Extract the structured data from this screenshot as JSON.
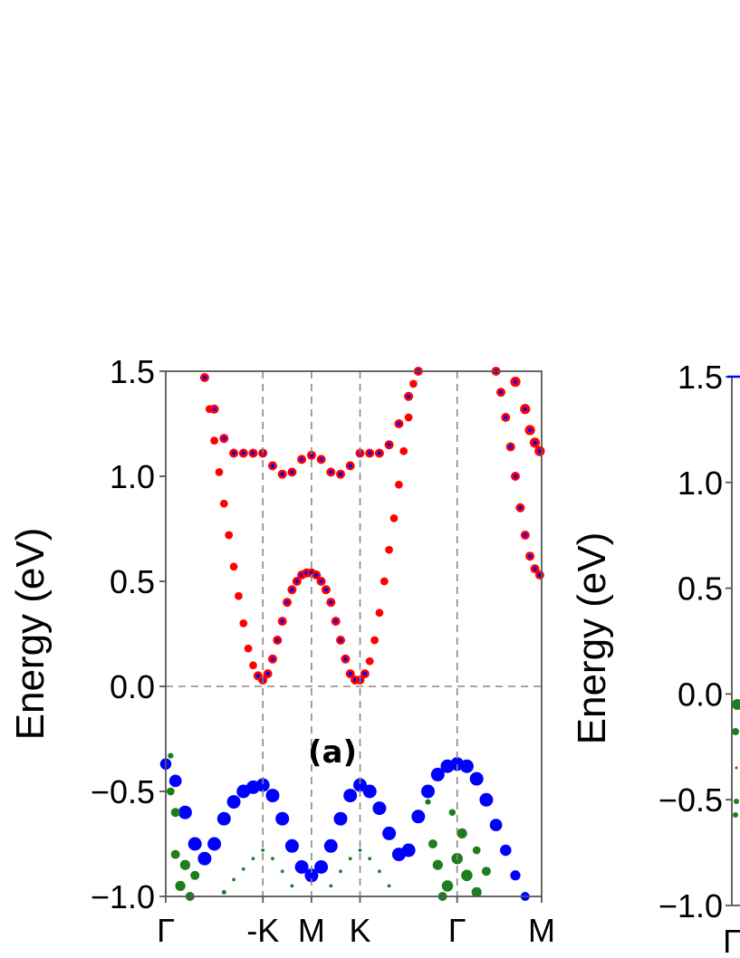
{
  "chart_data": [
    {
      "type": "scatter",
      "panel_label": "(a)",
      "ylabel": "Energy (eV)",
      "ylim": [
        -1.0,
        1.5
      ],
      "yticks": [
        {
          "value": 1.5,
          "label": "1.5"
        },
        {
          "value": 1.0,
          "label": "1.0"
        },
        {
          "value": 0.5,
          "label": "0.5"
        },
        {
          "value": 0.0,
          "label": "0.0"
        },
        {
          "value": -0.5,
          "label": "−0.5"
        },
        {
          "value": -1.0,
          "label": "−1.0"
        }
      ],
      "xticks": [
        {
          "k": 0.0,
          "label": "Γ"
        },
        {
          "k": 1.0,
          "label": "-K"
        },
        {
          "k": 1.5,
          "label": "M"
        },
        {
          "k": 2.0,
          "label": "K"
        },
        {
          "k": 3.0,
          "label": "Γ"
        },
        {
          "k": 3.87,
          "label": "M"
        }
      ],
      "xlim": [
        0.0,
        3.87
      ],
      "fermi_level": 0.0,
      "colors": {
        "red": "#ff0000",
        "blue": "#0000ff",
        "green": "#1e7d1e",
        "reference": "#888888"
      },
      "series": [
        {
          "color": "blue",
          "comment_color_role": "valence band",
          "points": [
            [
              0.0,
              -0.37,
              10
            ],
            [
              0.1,
              -0.45,
              11
            ],
            [
              0.2,
              -0.6,
              12
            ],
            [
              0.3,
              -0.75,
              12
            ],
            [
              0.4,
              -0.82,
              12
            ],
            [
              0.5,
              -0.75,
              12
            ],
            [
              0.6,
              -0.63,
              12
            ],
            [
              0.7,
              -0.55,
              12
            ],
            [
              0.8,
              -0.5,
              12
            ],
            [
              0.9,
              -0.48,
              12
            ],
            [
              1.0,
              -0.47,
              12
            ],
            [
              1.1,
              -0.52,
              12
            ],
            [
              1.2,
              -0.63,
              12
            ],
            [
              1.3,
              -0.76,
              12
            ],
            [
              1.4,
              -0.86,
              12
            ],
            [
              1.5,
              -0.9,
              12
            ],
            [
              1.6,
              -0.86,
              12
            ],
            [
              1.7,
              -0.76,
              12
            ],
            [
              1.8,
              -0.63,
              12
            ],
            [
              1.9,
              -0.52,
              12
            ],
            [
              2.0,
              -0.47,
              12
            ],
            [
              2.1,
              -0.5,
              12
            ],
            [
              2.2,
              -0.58,
              12
            ],
            [
              2.3,
              -0.7,
              12
            ],
            [
              2.4,
              -0.8,
              12
            ],
            [
              2.5,
              -0.78,
              12
            ],
            [
              2.6,
              -0.62,
              12
            ],
            [
              2.7,
              -0.5,
              12
            ],
            [
              2.8,
              -0.42,
              12
            ],
            [
              2.9,
              -0.38,
              12
            ],
            [
              3.0,
              -0.37,
              12
            ],
            [
              3.1,
              -0.38,
              12
            ],
            [
              3.2,
              -0.44,
              12
            ],
            [
              3.3,
              -0.54,
              12
            ],
            [
              3.4,
              -0.66,
              11
            ],
            [
              3.5,
              -0.78,
              10
            ],
            [
              3.6,
              -0.9,
              9
            ],
            [
              3.7,
              -1.0,
              8
            ]
          ]
        },
        {
          "color": "red",
          "comment_color_role": "conduction band 1",
          "points": [
            [
              0.95,
              0.05,
              8
            ],
            [
              1.0,
              0.03,
              8
            ],
            [
              1.05,
              0.06,
              8
            ],
            [
              1.1,
              0.13,
              8
            ],
            [
              1.15,
              0.22,
              8
            ],
            [
              1.2,
              0.31,
              8
            ],
            [
              1.25,
              0.4,
              8
            ],
            [
              1.3,
              0.46,
              8
            ],
            [
              1.35,
              0.5,
              8
            ],
            [
              1.4,
              0.53,
              8
            ],
            [
              1.45,
              0.54,
              8
            ],
            [
              1.5,
              0.54,
              8
            ],
            [
              1.55,
              0.53,
              8
            ],
            [
              1.6,
              0.5,
              8
            ],
            [
              1.65,
              0.46,
              8
            ],
            [
              1.7,
              0.4,
              8
            ],
            [
              1.75,
              0.31,
              8
            ],
            [
              1.8,
              0.22,
              8
            ],
            [
              1.85,
              0.13,
              8
            ],
            [
              1.9,
              0.06,
              8
            ],
            [
              1.95,
              0.03,
              8
            ],
            [
              2.0,
              0.03,
              8
            ],
            [
              2.05,
              0.06,
              8
            ],
            [
              0.9,
              0.1,
              7
            ],
            [
              0.85,
              0.18,
              7
            ],
            [
              0.8,
              0.3,
              7
            ],
            [
              0.75,
              0.43,
              7
            ],
            [
              0.7,
              0.57,
              7
            ],
            [
              0.65,
              0.72,
              7
            ],
            [
              0.6,
              0.87,
              7
            ],
            [
              0.55,
              1.02,
              7
            ],
            [
              0.5,
              1.17,
              7
            ],
            [
              0.45,
              1.32,
              7
            ],
            [
              0.4,
              1.47,
              7
            ],
            [
              2.1,
              0.12,
              7
            ],
            [
              2.15,
              0.22,
              7
            ],
            [
              2.2,
              0.35,
              7
            ],
            [
              2.25,
              0.5,
              7
            ],
            [
              2.3,
              0.65,
              7
            ],
            [
              2.35,
              0.8,
              7
            ],
            [
              2.4,
              0.96,
              7
            ],
            [
              2.45,
              1.12,
              7
            ],
            [
              2.5,
              1.28,
              7
            ],
            [
              2.55,
              1.44,
              7
            ]
          ]
        },
        {
          "color": "red",
          "comment_color_role": "conduction band 2",
          "points": [
            [
              0.4,
              1.47,
              8
            ],
            [
              0.5,
              1.32,
              8
            ],
            [
              0.6,
              1.18,
              8
            ],
            [
              0.7,
              1.11,
              8
            ],
            [
              0.8,
              1.11,
              8
            ],
            [
              0.9,
              1.11,
              8
            ],
            [
              1.0,
              1.11,
              8
            ],
            [
              1.1,
              1.05,
              8
            ],
            [
              1.2,
              1.01,
              8
            ],
            [
              1.3,
              1.02,
              8
            ],
            [
              1.4,
              1.08,
              8
            ],
            [
              1.5,
              1.1,
              8
            ],
            [
              1.6,
              1.08,
              8
            ],
            [
              1.7,
              1.02,
              8
            ],
            [
              1.8,
              1.01,
              8
            ],
            [
              1.9,
              1.05,
              8
            ],
            [
              2.0,
              1.11,
              8
            ],
            [
              2.1,
              1.11,
              8
            ],
            [
              2.2,
              1.11,
              8
            ],
            [
              2.3,
              1.15,
              8
            ],
            [
              2.4,
              1.25,
              8
            ],
            [
              2.5,
              1.38,
              8
            ],
            [
              2.6,
              1.5,
              8
            ],
            [
              3.4,
              1.5,
              8
            ],
            [
              3.45,
              1.4,
              8
            ],
            [
              3.5,
              1.28,
              8
            ],
            [
              3.55,
              1.14,
              8
            ],
            [
              3.6,
              1.0,
              8
            ],
            [
              3.65,
              0.85,
              8
            ],
            [
              3.7,
              0.72,
              8
            ],
            [
              3.75,
              0.62,
              8
            ],
            [
              3.8,
              0.56,
              8
            ],
            [
              3.85,
              0.53,
              8
            ],
            [
              3.6,
              1.45,
              9
            ],
            [
              3.7,
              1.32,
              9
            ],
            [
              3.75,
              1.22,
              9
            ],
            [
              3.8,
              1.16,
              9
            ],
            [
              3.85,
              1.12,
              9
            ]
          ]
        },
        {
          "color": "green",
          "comment_color_role": "deep bands",
          "points": [
            [
              0.05,
              -0.33,
              5
            ],
            [
              0.05,
              -0.5,
              7
            ],
            [
              0.1,
              -0.6,
              8
            ],
            [
              0.1,
              -0.8,
              8
            ],
            [
              0.2,
              -0.85,
              9
            ],
            [
              0.15,
              -0.95,
              9
            ],
            [
              0.3,
              -0.9,
              8
            ],
            [
              0.25,
              -1.0,
              8
            ],
            [
              0.6,
              -0.98,
              4
            ],
            [
              0.7,
              -0.92,
              3
            ],
            [
              0.8,
              -0.87,
              3
            ],
            [
              0.9,
              -0.82,
              3
            ],
            [
              1.0,
              -0.78,
              3
            ],
            [
              1.1,
              -0.82,
              3
            ],
            [
              1.2,
              -0.88,
              3
            ],
            [
              1.3,
              -0.95,
              3
            ],
            [
              1.7,
              -0.95,
              3
            ],
            [
              1.8,
              -0.88,
              3
            ],
            [
              1.9,
              -0.82,
              3
            ],
            [
              2.0,
              -0.78,
              3
            ],
            [
              2.1,
              -0.82,
              3
            ],
            [
              2.2,
              -0.88,
              3
            ],
            [
              2.3,
              -0.95,
              3
            ],
            [
              2.7,
              -0.55,
              5
            ],
            [
              2.75,
              -0.75,
              8
            ],
            [
              2.8,
              -0.85,
              9
            ],
            [
              2.9,
              -0.95,
              10
            ],
            [
              3.0,
              -0.82,
              10
            ],
            [
              3.05,
              -0.7,
              9
            ],
            [
              3.1,
              -0.9,
              10
            ],
            [
              3.2,
              -0.98,
              9
            ],
            [
              3.3,
              -0.88,
              8
            ],
            [
              3.2,
              -0.78,
              7
            ],
            [
              2.95,
              -0.6,
              6
            ],
            [
              2.85,
              -1.0,
              8
            ]
          ]
        }
      ]
    },
    {
      "type": "scatter",
      "ylabel": "Energy (eV)",
      "ylim": [
        -1.0,
        1.5
      ],
      "yticks": [
        {
          "value": 1.5,
          "label": "1.5"
        },
        {
          "value": 1.0,
          "label": "1.0"
        },
        {
          "value": 0.5,
          "label": "0.5"
        },
        {
          "value": 0.0,
          "label": "0.0"
        },
        {
          "value": -0.5,
          "label": "−0.5"
        },
        {
          "value": -1.0,
          "label": "−1.0"
        }
      ],
      "xticks": [
        {
          "label": "Γ"
        }
      ]
    }
  ]
}
